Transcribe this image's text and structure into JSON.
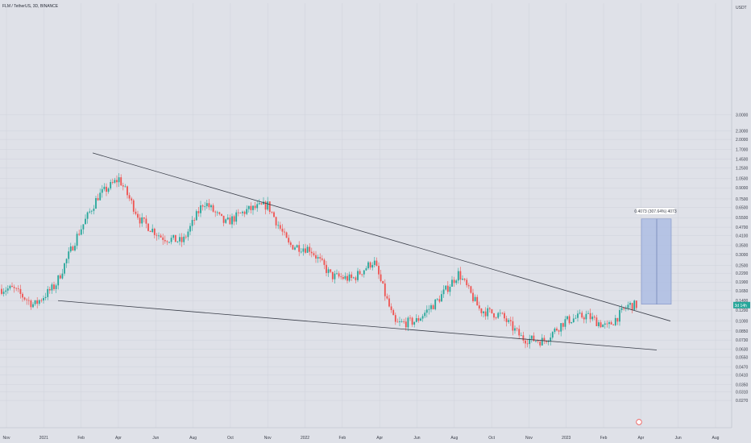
{
  "header": {
    "symbol_title": "FLM / TetherUS, 3D, BINANCE"
  },
  "colors": {
    "background": "#dfe1e8",
    "grid": "#cfd2db",
    "up": "#26a69a",
    "down": "#ef5350",
    "trendline": "#3a3e49",
    "target_box": "#aebde3",
    "badge_bg": "#26a69a"
  },
  "price_axis": {
    "currency": "USDT",
    "scale": "log",
    "ticks": [
      "3.0000",
      "2.3000",
      "2.0000",
      "1.7000",
      "1.4500",
      "1.2500",
      "1.0500",
      "0.9000",
      "0.7500",
      "0.6500",
      "0.5500",
      "0.4700",
      "0.4100",
      "0.3500",
      "0.3000",
      "0.2500",
      "0.2200",
      "0.1900",
      "0.1650",
      "0.1400",
      "0.1200",
      "0.1000",
      "0.0850",
      "0.0730",
      "0.0630",
      "0.0550",
      "0.0470",
      "0.0410",
      "0.0350",
      "0.0310",
      "0.0270"
    ],
    "last_price_label": "3d 14h"
  },
  "time_axis": {
    "labels": [
      "Nov",
      "2021",
      "Feb",
      "Apr",
      "Jun",
      "Aug",
      "Oct",
      "Nov",
      "2022",
      "Feb",
      "Apr",
      "Jun",
      "Aug",
      "Oct",
      "Nov",
      "2023",
      "Feb",
      "Apr",
      "Jun",
      "Aug"
    ]
  },
  "measure_tool": {
    "label": "0.4073 (307.64%) 4073"
  },
  "chart_data": {
    "type": "candlestick",
    "title": "FLM / TetherUS, 3D, BINANCE",
    "y_scale": "log",
    "ylim": [
      0.026,
      3.2
    ],
    "y_unit": "USDT",
    "close_path": [
      [
        "Nov 2020",
        0.17
      ],
      [
        "Dec 2020",
        0.13
      ],
      [
        "Jan 2021",
        0.18
      ],
      [
        "Feb 2021",
        0.4
      ],
      [
        "Mar 2021",
        0.78
      ],
      [
        "Apr 2021",
        1.05
      ],
      [
        "May 2021",
        0.53
      ],
      [
        "Jun 2021",
        0.4
      ],
      [
        "Jul 2021",
        0.37
      ],
      [
        "Aug 2021",
        0.72
      ],
      [
        "Sep 2021",
        0.5
      ],
      [
        "Oct 2021",
        0.62
      ],
      [
        "Nov 2021",
        0.68
      ],
      [
        "Dec 2021",
        0.35
      ],
      [
        "Jan 2022",
        0.33
      ],
      [
        "Feb 2022",
        0.21
      ],
      [
        "Mar 2022",
        0.2
      ],
      [
        "Apr 2022",
        0.27
      ],
      [
        "May 2022",
        0.095
      ],
      [
        "Jun 2022",
        0.1
      ],
      [
        "Jul 2022",
        0.14
      ],
      [
        "Aug 2022",
        0.22
      ],
      [
        "Sep 2022",
        0.12
      ],
      [
        "Oct 2022",
        0.11
      ],
      [
        "Nov 2022",
        0.075
      ],
      [
        "Dec 2022",
        0.072
      ],
      [
        "Jan 2023",
        0.1
      ],
      [
        "Feb 2023",
        0.11
      ],
      [
        "Mar 2023",
        0.09
      ],
      [
        "Apr 2023",
        0.13
      ]
    ],
    "annotations": [
      {
        "type": "descending_trendline",
        "from": [
          "Jan 2021",
          1.6
        ],
        "to": [
          "May 2023",
          0.1
        ]
      },
      {
        "type": "support_trendline",
        "from": [
          "Jan 2021",
          0.14
        ],
        "to": [
          "May 2023",
          0.062
        ]
      },
      {
        "type": "price_range_target",
        "low": 0.132,
        "high": 0.539,
        "label": "0.4073 (307.64%) 4073"
      }
    ]
  }
}
